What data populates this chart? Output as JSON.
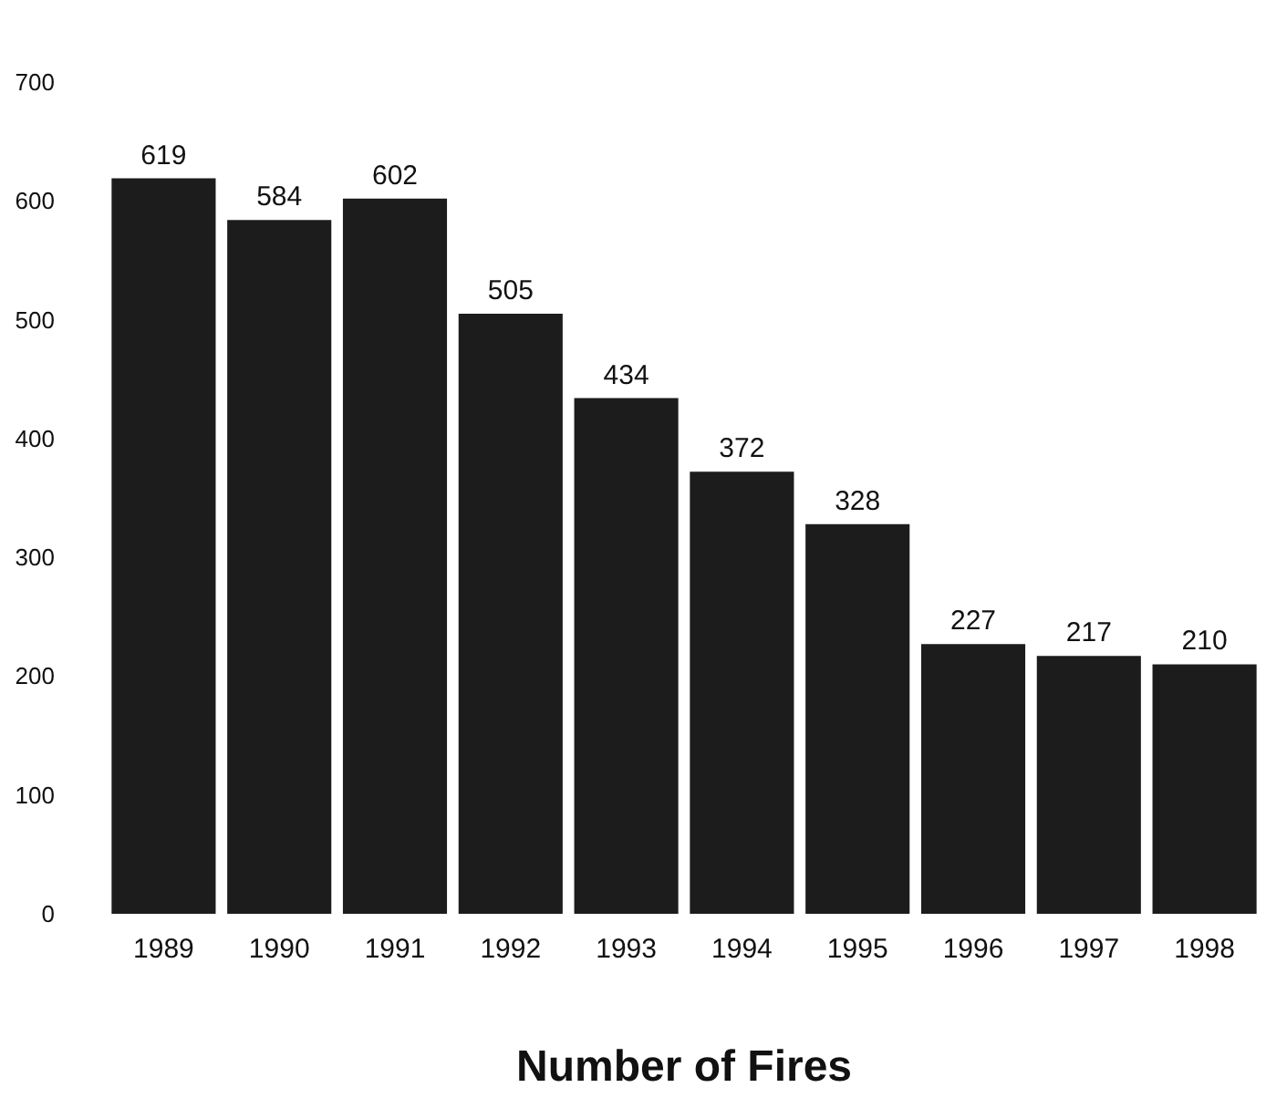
{
  "chart_data": {
    "type": "bar",
    "xlabel": "Number of Fires",
    "categories": [
      "1989",
      "1990",
      "1991",
      "1992",
      "1993",
      "1994",
      "1995",
      "1996",
      "1997",
      "1998"
    ],
    "values": [
      619,
      584,
      602,
      505,
      434,
      372,
      328,
      227,
      217,
      210
    ],
    "color": "#1c1c1c",
    "ylim": [
      0,
      700
    ],
    "yticks": [
      0,
      100,
      200,
      300,
      400,
      500,
      600,
      700
    ],
    "grid": false,
    "data_labels": true
  }
}
